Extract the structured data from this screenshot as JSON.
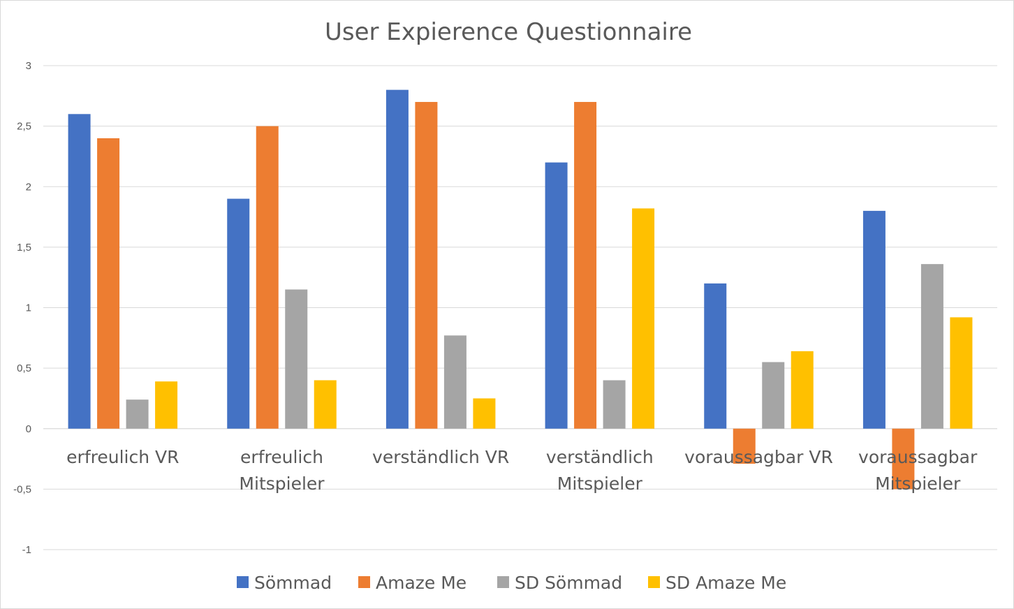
{
  "chart_data": {
    "type": "bar",
    "title": "User Expierence Questionnaire",
    "categories": [
      [
        "erfreulich VR"
      ],
      [
        "erfreulich",
        "Mitspieler"
      ],
      [
        "verständlich VR"
      ],
      [
        "verständlich",
        "Mitspieler"
      ],
      [
        "voraussagbar VR"
      ],
      [
        "voraussagbar",
        "Mitspieler"
      ]
    ],
    "series": [
      {
        "name": "Sömmad",
        "color": "#4472C4",
        "values": [
          2.6,
          1.9,
          2.8,
          2.2,
          1.2,
          1.8
        ]
      },
      {
        "name": "Amaze Me",
        "color": "#ED7D31",
        "values": [
          2.4,
          2.5,
          2.7,
          2.7,
          -0.29,
          -0.5
        ]
      },
      {
        "name": "SD Sömmad",
        "color": "#A5A5A5",
        "values": [
          0.24,
          1.15,
          0.77,
          0.4,
          0.55,
          1.36
        ]
      },
      {
        "name": "SD Amaze Me",
        "color": "#FFC000",
        "values": [
          0.39,
          0.4,
          0.25,
          1.82,
          0.64,
          0.92
        ]
      }
    ],
    "ylim": [
      -1,
      3
    ],
    "yticks": [
      "-1",
      "-0,5",
      "0",
      "0,5",
      "1",
      "1,5",
      "2",
      "2,5",
      "3"
    ],
    "grid": true,
    "legend_position": "bottom",
    "xlabel": "",
    "ylabel": ""
  }
}
